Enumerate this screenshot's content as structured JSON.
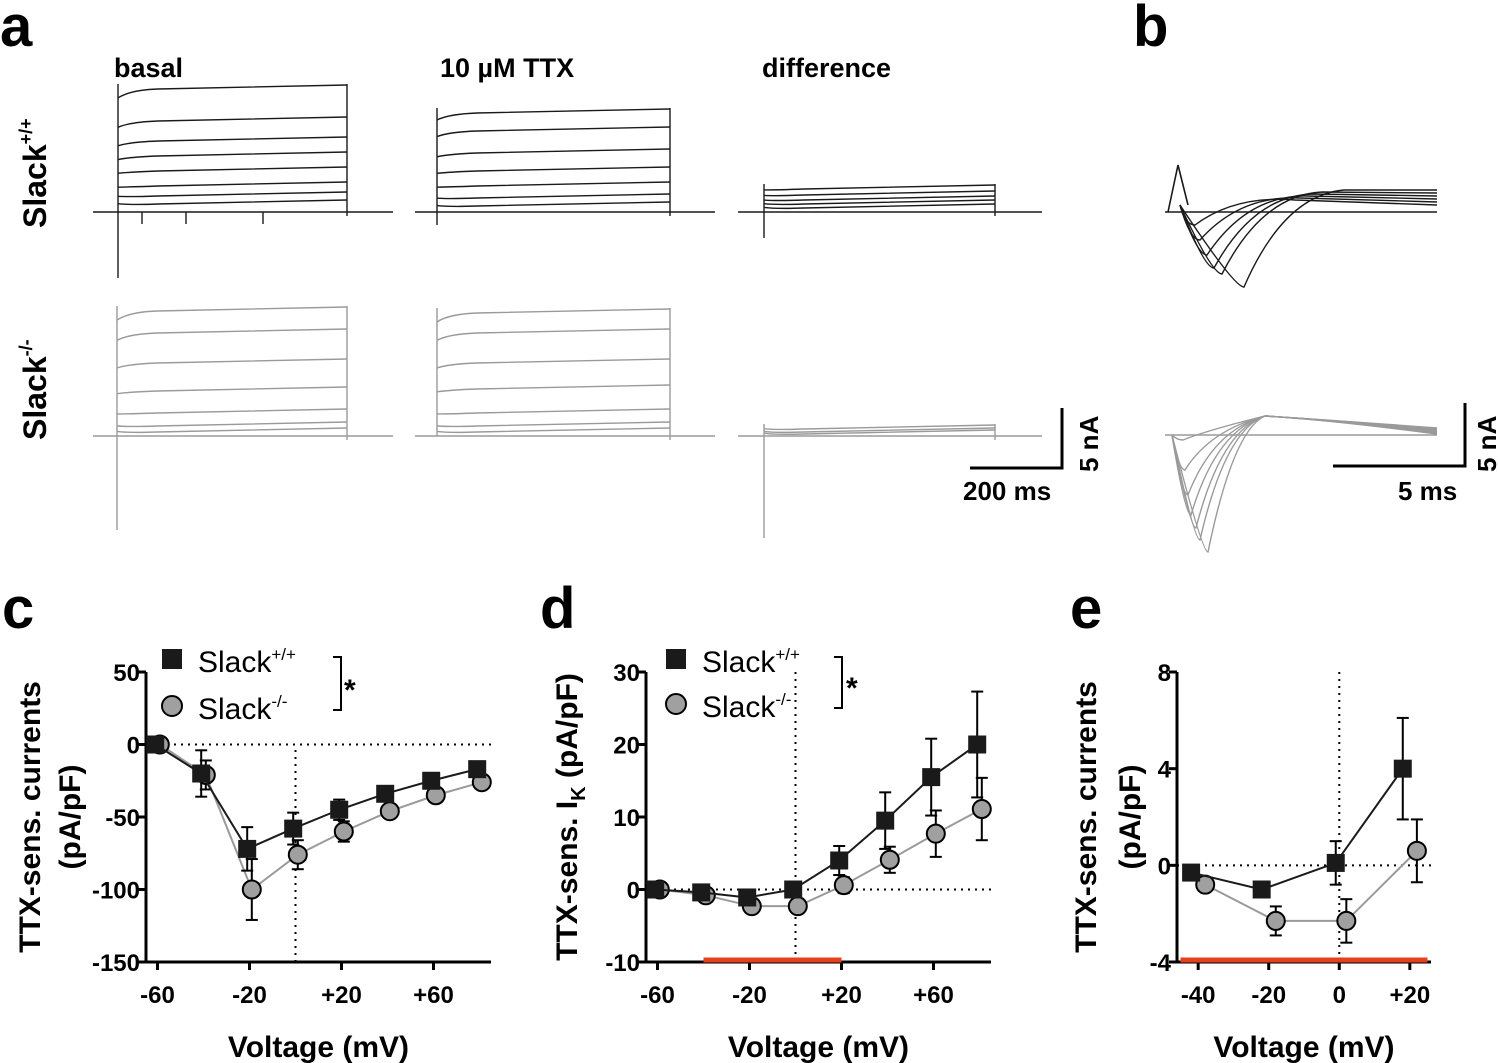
{
  "panel_letters": {
    "a": "a",
    "b": "b",
    "c": "c",
    "d": "d",
    "e": "e"
  },
  "panel_a": {
    "columns": [
      "basal",
      "10 µM TTX",
      "difference"
    ],
    "rows": [
      {
        "base": "Slack",
        "sup": "+/+"
      },
      {
        "base": "Slack",
        "sup": "-/-"
      }
    ],
    "scale_time": "200 ms",
    "scale_current": "5 nA"
  },
  "panel_b": {
    "scale_time": "5 ms",
    "scale_current": "5 nA"
  },
  "legend": {
    "wt": {
      "base": "Slack",
      "sup": "+/+"
    },
    "ko": {
      "base": "Slack",
      "sup": "-/-"
    },
    "significance": "*"
  },
  "colors": {
    "wt": "#1a1a1a",
    "ko": "#a0a0a0",
    "ko_line": "#9a9a9a",
    "highlight": "#e8401c"
  },
  "chart_data": [
    {
      "panel": "c",
      "type": "line",
      "xlabel": "Voltage (mV)",
      "ylabel": "TTX-sens. currents",
      "ylabel2": "(pA/pF)",
      "xlim": [
        -65,
        85
      ],
      "ylim": [
        -150,
        50
      ],
      "xticks": [
        -60,
        -20,
        20,
        60
      ],
      "xtick_labels": [
        "-60",
        "-20",
        "+20",
        "+60"
      ],
      "yticks": [
        50,
        0,
        -50,
        -100,
        -150
      ],
      "ytick_labels": [
        "50",
        "0",
        "-50",
        "-100",
        "-150"
      ],
      "zero_lines": {
        "x": 0,
        "y": 0
      },
      "red_bar": null,
      "series": [
        {
          "name": "Slack+/+",
          "marker": "square",
          "x": [
            -61,
            -41,
            -21,
            -1,
            19,
            39,
            59,
            79
          ],
          "y": [
            0,
            -20,
            -72,
            -58,
            -45,
            -34,
            -25,
            -17
          ],
          "err": [
            0,
            16,
            15,
            11,
            7,
            4,
            4,
            3
          ]
        },
        {
          "name": "Slack-/-",
          "marker": "circle",
          "x": [
            -59,
            -39,
            -19,
            1,
            21,
            41,
            61,
            81
          ],
          "y": [
            0,
            -21,
            -100,
            -76,
            -60,
            -46,
            -35,
            -26
          ],
          "err": [
            0,
            10,
            21,
            10,
            7,
            4,
            4,
            3
          ]
        }
      ]
    },
    {
      "panel": "d",
      "type": "line",
      "xlabel": "Voltage (mV)",
      "ylabel": "TTX-sens. I",
      "ylabel_sub": "K",
      "ylabel_unit": " (pA/pF)",
      "xlim": [
        -65,
        85
      ],
      "ylim": [
        -10,
        30
      ],
      "xticks": [
        -60,
        -20,
        20,
        60
      ],
      "xtick_labels": [
        "-60",
        "-20",
        "+20",
        "+60"
      ],
      "yticks": [
        30,
        20,
        10,
        0,
        -10
      ],
      "ytick_labels": [
        "30",
        "20",
        "10",
        "0",
        "-10"
      ],
      "zero_lines": {
        "x": 0,
        "y": 0
      },
      "red_bar": [
        -40,
        20
      ],
      "series": [
        {
          "name": "Slack+/+",
          "marker": "square",
          "x": [
            -61,
            -41,
            -21,
            -1,
            19,
            39,
            59,
            79
          ],
          "y": [
            0,
            -0.4,
            -1.1,
            0,
            4,
            9.5,
            15.5,
            20
          ],
          "err": [
            0,
            0.4,
            0.5,
            0.6,
            2,
            3.9,
            5.3,
            7.3
          ]
        },
        {
          "name": "Slack-/-",
          "marker": "circle",
          "x": [
            -59,
            -39,
            -19,
            1,
            21,
            41,
            61,
            81
          ],
          "y": [
            0,
            -0.8,
            -2.3,
            -2.3,
            0.6,
            4.1,
            7.7,
            11.1
          ],
          "err": [
            0,
            0.3,
            0.3,
            0.6,
            1.1,
            1.8,
            3.2,
            4.3
          ]
        }
      ]
    },
    {
      "panel": "e",
      "type": "line",
      "xlabel": "Voltage (mV)",
      "ylabel": "TTX-sens. currents",
      "ylabel2": "(pA/pF)",
      "xlim": [
        -46,
        26
      ],
      "ylim": [
        -4,
        8
      ],
      "xticks": [
        -40,
        -20,
        0,
        20
      ],
      "xtick_labels": [
        "-40",
        "-20",
        "0",
        "+20"
      ],
      "yticks": [
        8,
        4,
        0,
        -4
      ],
      "ytick_labels": [
        "8",
        "4",
        "0",
        "-4"
      ],
      "zero_lines": {
        "x": 0,
        "y": 0
      },
      "red_bar": [
        -45,
        25
      ],
      "series": [
        {
          "name": "Slack+/+",
          "marker": "square",
          "x": [
            -42,
            -22,
            -1,
            18
          ],
          "y": [
            -0.3,
            -1,
            0.1,
            4
          ],
          "err": [
            0,
            0.2,
            0.9,
            2.1
          ]
        },
        {
          "name": "Slack-/-",
          "marker": "circle",
          "x": [
            -38,
            -18,
            2,
            22
          ],
          "y": [
            -0.8,
            -2.3,
            -2.3,
            0.6
          ],
          "err": [
            0,
            0.6,
            0.9,
            1.3
          ]
        }
      ]
    }
  ]
}
